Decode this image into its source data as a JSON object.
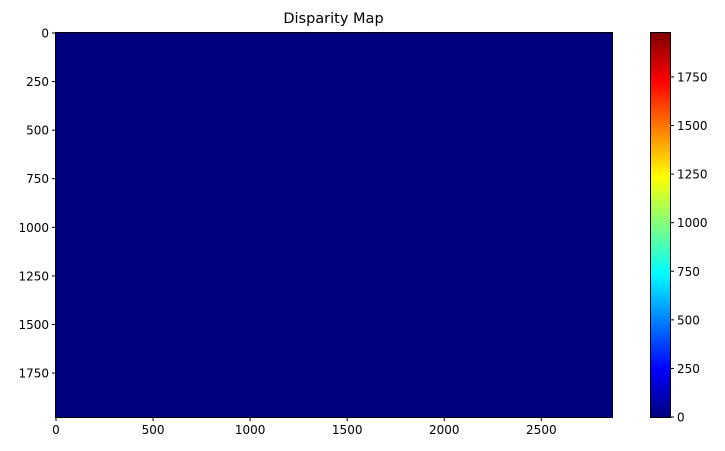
{
  "chart_data": {
    "type": "heatmap",
    "title": "Disparity Map",
    "xlabel": "",
    "ylabel": "",
    "xlim": [
      0,
      2864
    ],
    "ylim": [
      1976,
      0
    ],
    "x_ticks": [
      0,
      500,
      1000,
      1500,
      2000,
      2500
    ],
    "y_ticks": [
      0,
      250,
      500,
      750,
      1000,
      1250,
      1500,
      1750
    ],
    "x_tick_labels": [
      "0",
      "500",
      "1000",
      "1500",
      "2000",
      "2500"
    ],
    "y_tick_labels": [
      "0",
      "250",
      "500",
      "750",
      "1000",
      "1250",
      "1500",
      "1750"
    ],
    "fill_value": 0,
    "fill_color": "#00007f",
    "colormap": "jet",
    "colorbar": {
      "vmin": 0,
      "vmax": 1976,
      "ticks": [
        0,
        250,
        500,
        750,
        1000,
        1250,
        1500,
        1750
      ],
      "tick_labels": [
        "0",
        "250",
        "500",
        "750",
        "1000",
        "1250",
        "1500",
        "1750"
      ],
      "colors": [
        "#00007f",
        "#0000ff",
        "#007fff",
        "#00ffff",
        "#7fff7f",
        "#ffff00",
        "#ff7f00",
        "#ff0000",
        "#7f0000"
      ]
    },
    "grid": false
  }
}
